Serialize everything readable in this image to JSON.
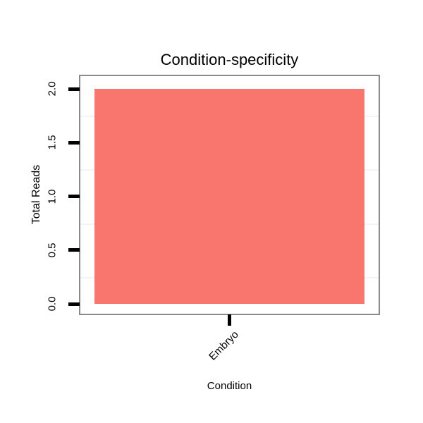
{
  "chart_data": {
    "type": "bar",
    "title": "Condition-specificity",
    "xlabel": "Condition",
    "ylabel": "Total Reads",
    "categories": [
      "Embryo"
    ],
    "values": [
      2
    ],
    "ylim": [
      0,
      2
    ],
    "yticks": [
      0,
      0.5,
      1,
      1.5,
      2
    ],
    "ytick_labels": [
      "0.0",
      "0.5",
      "1.0",
      "1.5",
      "2.0"
    ],
    "minor_gridlines": [
      0.25,
      0.75,
      1.25,
      1.75
    ],
    "grid": "minor horizontal only, very faint",
    "legend": "none",
    "bar_color": "#F8766D",
    "panel_border_color": "#8A8A8A",
    "tick_color": "#000000",
    "background_color": "#FFFFFF"
  }
}
